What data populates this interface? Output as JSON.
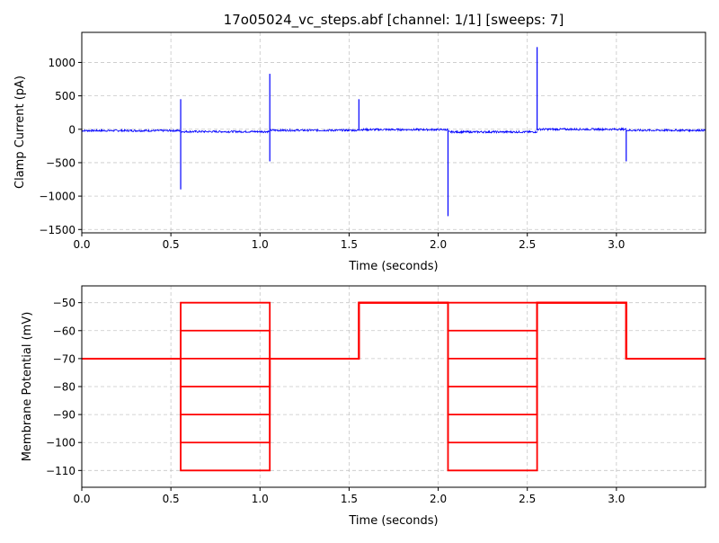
{
  "chart_data": [
    {
      "type": "line",
      "title": "17o05024_vc_steps.abf [channel: 1/1] [sweeps: 7]",
      "xlabel": "Time (seconds)",
      "ylabel": "Clamp Current (pA)",
      "xlim": [
        0,
        3.5
      ],
      "ylim": [
        -1550,
        1450
      ],
      "xticks": [
        "0.0",
        "0.5",
        "1.0",
        "1.5",
        "2.0",
        "2.5",
        "3.0"
      ],
      "xtick_values": [
        0,
        0.5,
        1.0,
        1.5,
        2.0,
        2.5,
        3.0
      ],
      "yticks": [
        "−1500",
        "−1000",
        "−500",
        "0",
        "500",
        "1000"
      ],
      "ytick_values": [
        -1500,
        -1000,
        -500,
        0,
        500,
        1000
      ],
      "grid": true,
      "color": "#0000ff",
      "baseline_segments": [
        {
          "t0": 0.0,
          "t1": 0.555,
          "y": -20
        },
        {
          "t0": 0.555,
          "t1": 1.055,
          "y": -35
        },
        {
          "t0": 1.055,
          "t1": 1.555,
          "y": -15
        },
        {
          "t0": 1.555,
          "t1": 2.055,
          "y": -5
        },
        {
          "t0": 2.055,
          "t1": 2.555,
          "y": -40
        },
        {
          "t0": 2.555,
          "t1": 3.055,
          "y": 0
        },
        {
          "t0": 3.055,
          "t1": 3.5,
          "y": -15
        }
      ],
      "transients": [
        {
          "t": 0.555,
          "high": 450,
          "low": -900
        },
        {
          "t": 1.055,
          "high": 830,
          "low": -480
        },
        {
          "t": 1.555,
          "high": 450,
          "low": -20
        },
        {
          "t": 2.055,
          "high": -10,
          "low": -1300
        },
        {
          "t": 2.555,
          "high": 1230,
          "low": -20
        },
        {
          "t": 3.055,
          "high": -10,
          "low": -480
        }
      ]
    },
    {
      "type": "line",
      "xlabel": "Time (seconds)",
      "ylabel": "Membrane Potential (mV)",
      "xlim": [
        0,
        3.5
      ],
      "ylim": [
        -116,
        -44
      ],
      "xticks": [
        "0.0",
        "0.5",
        "1.0",
        "1.5",
        "2.0",
        "2.5",
        "3.0"
      ],
      "xtick_values": [
        0,
        0.5,
        1.0,
        1.5,
        2.0,
        2.5,
        3.0
      ],
      "yticks": [
        "−110",
        "−100",
        "−90",
        "−80",
        "−70",
        "−60",
        "−50"
      ],
      "ytick_values": [
        -110,
        -100,
        -90,
        -80,
        -70,
        -60,
        -50
      ],
      "grid": true,
      "color": "#ff0000",
      "step_times": [
        0.0,
        0.555,
        1.055,
        1.555,
        2.055,
        2.555,
        3.055,
        3.5
      ],
      "sweeps": [
        {
          "levels": [
            -70,
            -50,
            -70,
            -50,
            -50,
            -50,
            -70
          ]
        },
        {
          "levels": [
            -70,
            -60,
            -70,
            -50,
            -60,
            -50,
            -70
          ]
        },
        {
          "levels": [
            -70,
            -70,
            -70,
            -50,
            -70,
            -50,
            -70
          ]
        },
        {
          "levels": [
            -70,
            -80,
            -70,
            -50,
            -80,
            -50,
            -70
          ]
        },
        {
          "levels": [
            -70,
            -90,
            -70,
            -50,
            -90,
            -50,
            -70
          ]
        },
        {
          "levels": [
            -70,
            -100,
            -70,
            -50,
            -100,
            -50,
            -70
          ]
        },
        {
          "levels": [
            -70,
            -110,
            -70,
            -50,
            -110,
            -50,
            -70
          ]
        }
      ]
    }
  ]
}
